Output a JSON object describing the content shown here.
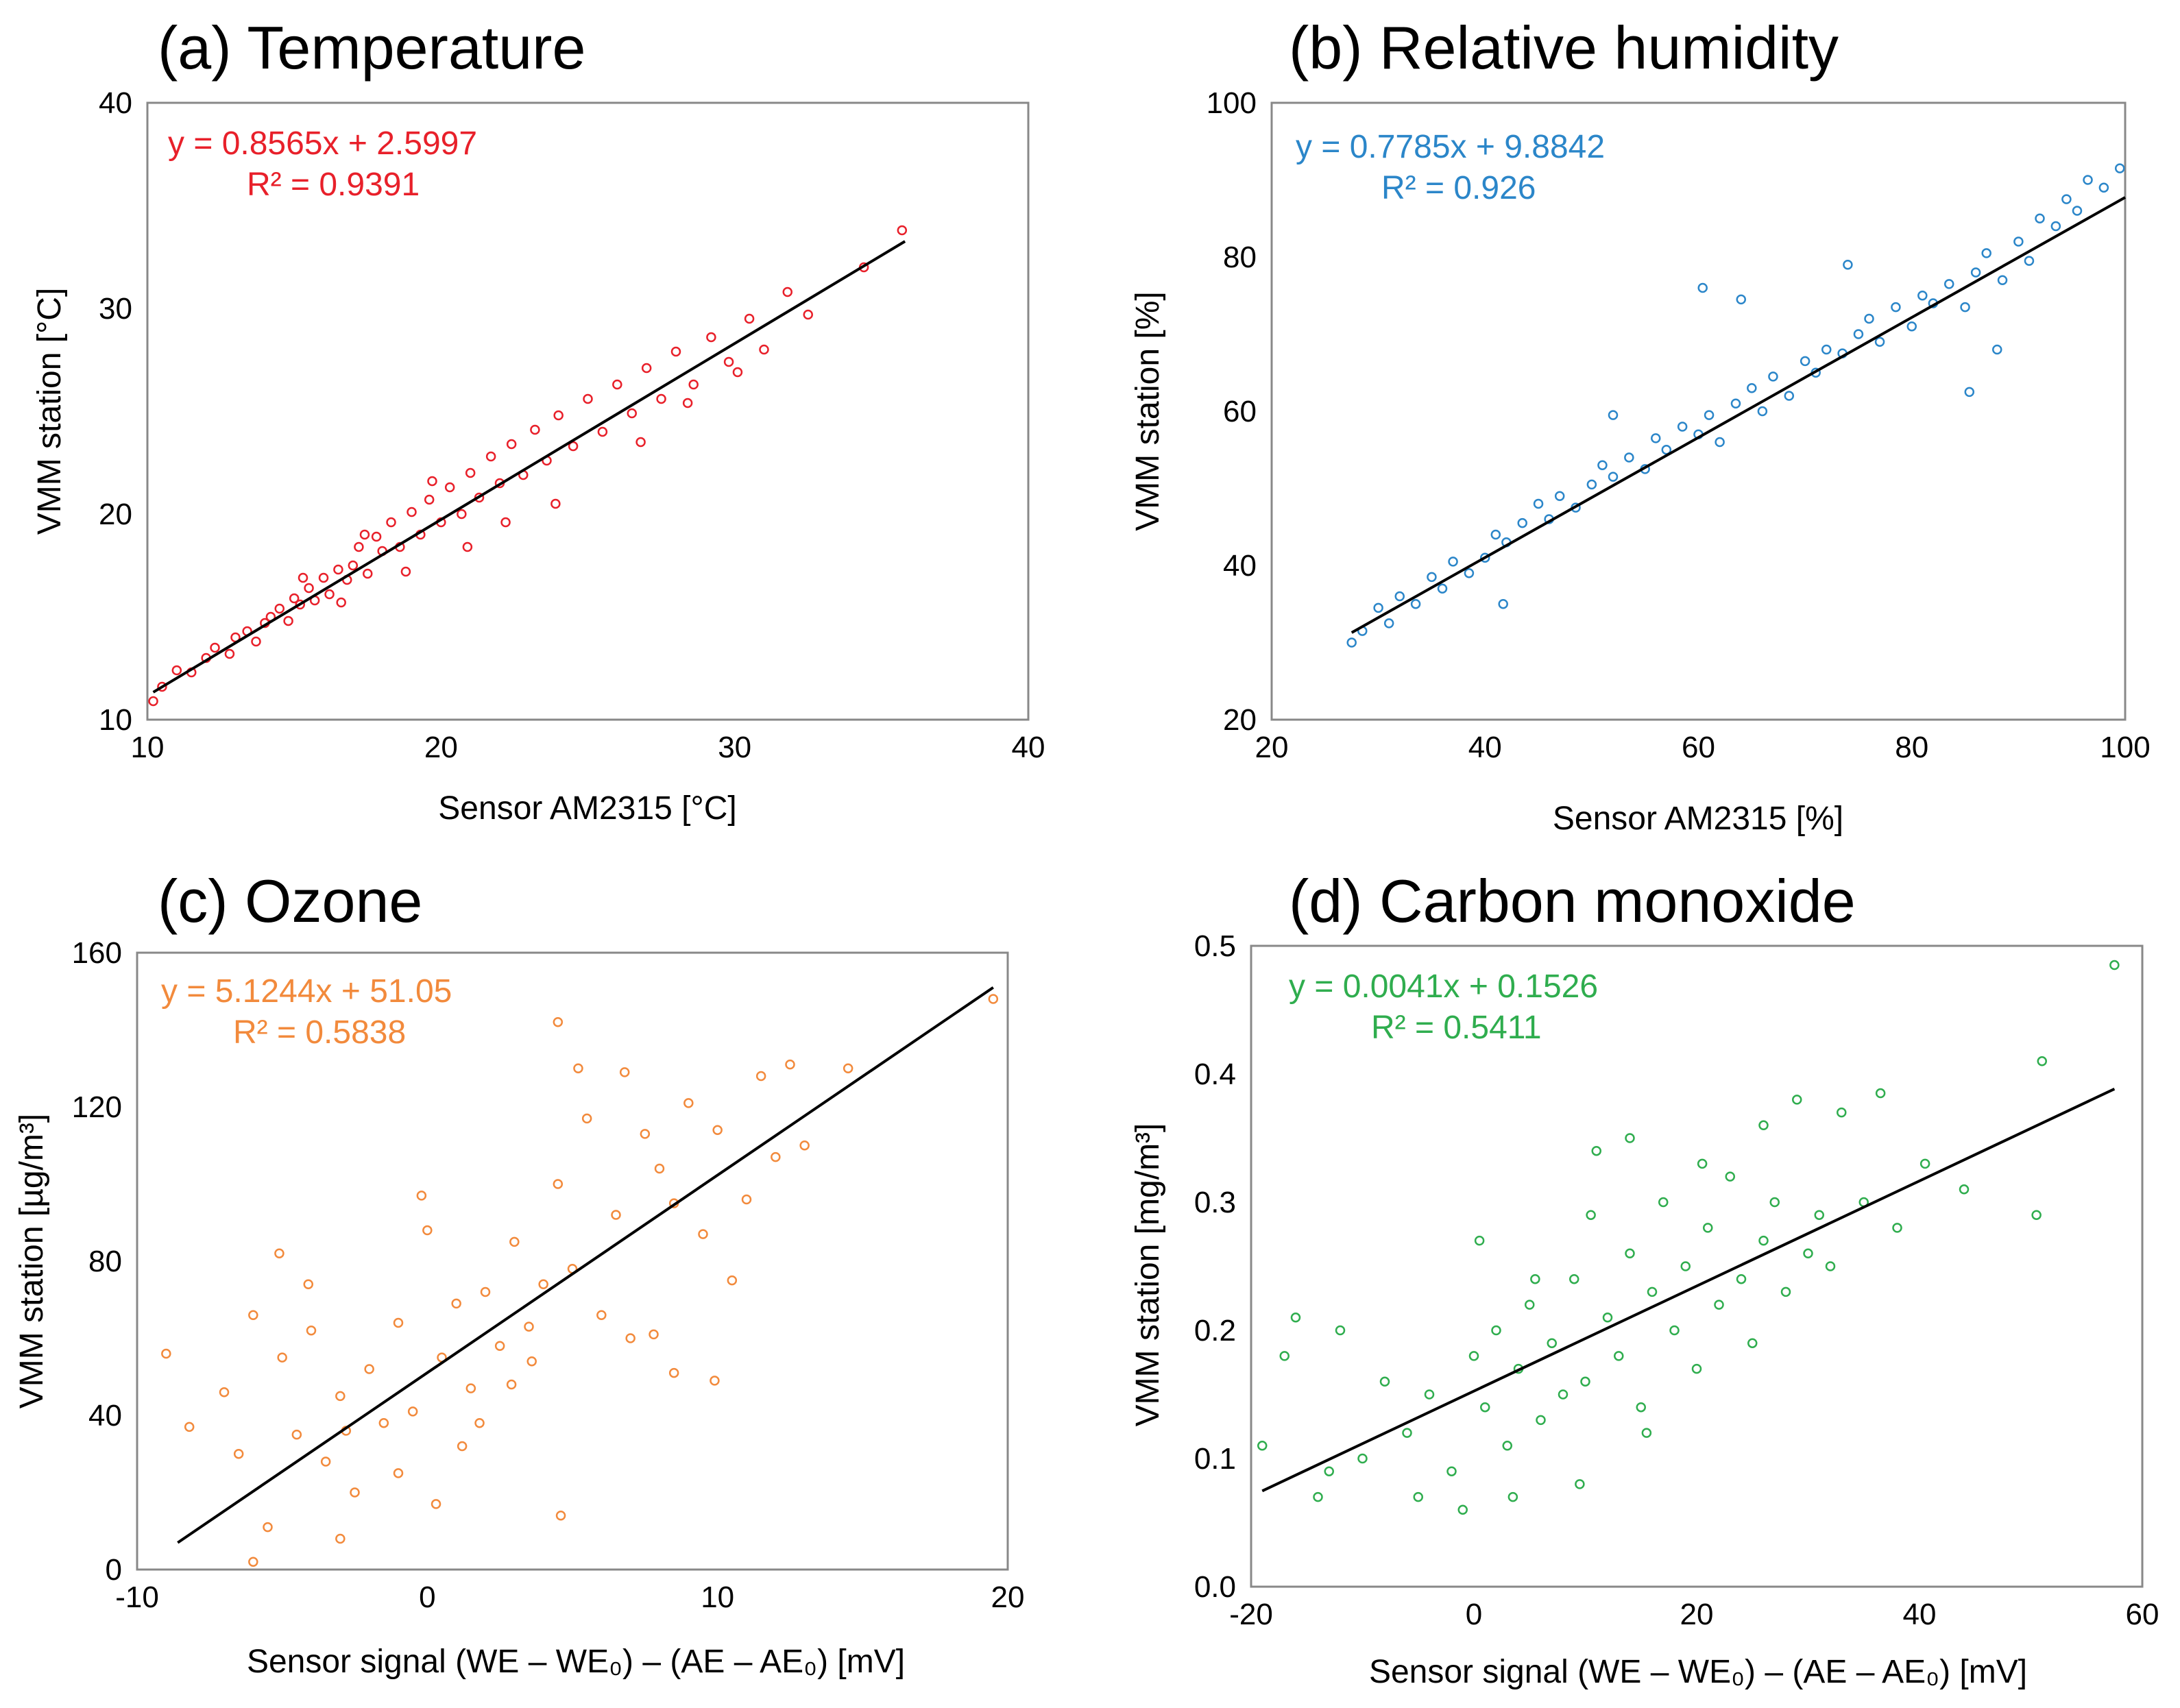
{
  "chart_data": [
    {
      "type": "scatter",
      "title": "(a) Temperature",
      "xlabel": "Sensor AM2315 [°C]",
      "ylabel": "VMM station [°C]",
      "xlim": [
        10,
        40
      ],
      "ylim": [
        10,
        40
      ],
      "xticks": [
        "10",
        "20",
        "30",
        "40"
      ],
      "yticks": [
        "10",
        "20",
        "30",
        "40"
      ],
      "color": "#e8202a",
      "equation": "y = 0.8565x + 2.5997",
      "r2": "R² = 0.9391",
      "fit": {
        "slope": 0.8565,
        "intercept": 2.5997,
        "x_range": [
          10.2,
          35.8
        ]
      },
      "series": [
        {
          "values_x": [
            10.2,
            10.5,
            11.0,
            11.5,
            12.0,
            12.3,
            12.8,
            13.0,
            13.4,
            13.7,
            14.0,
            14.2,
            14.5,
            14.8,
            15.0,
            15.2,
            15.5,
            15.7,
            16.0,
            16.2,
            16.5,
            16.8,
            17.0,
            17.2,
            17.5,
            17.8,
            18.0,
            18.3,
            18.6,
            19.0,
            19.3,
            19.6,
            20.0,
            20.3,
            20.7,
            21.0,
            21.3,
            21.7,
            22.0,
            22.4,
            22.8,
            23.2,
            23.6,
            24.0,
            24.5,
            25.0,
            25.5,
            26.0,
            26.5,
            27.0,
            27.5,
            28.0,
            28.6,
            29.2,
            29.8,
            30.5,
            31.0,
            31.8,
            32.5,
            34.4,
            35.7,
            15.3,
            16.6,
            17.4,
            18.8,
            19.7,
            20.9,
            22.2,
            23.9,
            26.8,
            28.4,
            30.1
          ],
          "values_y": [
            10.9,
            11.6,
            12.4,
            12.3,
            13.0,
            13.5,
            13.2,
            14.0,
            14.3,
            13.8,
            14.7,
            15.0,
            15.4,
            14.8,
            15.9,
            15.6,
            16.4,
            15.8,
            16.9,
            16.1,
            17.3,
            16.8,
            17.5,
            18.4,
            17.1,
            18.9,
            18.2,
            19.6,
            18.4,
            20.1,
            19.0,
            20.7,
            19.6,
            21.3,
            20.0,
            22.0,
            20.8,
            22.8,
            21.5,
            23.4,
            21.9,
            24.1,
            22.6,
            24.8,
            23.3,
            25.6,
            24.0,
            26.3,
            24.9,
            27.1,
            25.6,
            27.9,
            26.3,
            28.6,
            27.4,
            29.5,
            28.0,
            30.8,
            29.7,
            32.0,
            33.8,
            16.9,
            15.7,
            19.0,
            17.2,
            21.6,
            18.4,
            19.6,
            20.5,
            23.5,
            25.4,
            26.9
          ]
        }
      ]
    },
    {
      "type": "scatter",
      "title": "(b) Relative humidity",
      "xlabel": "Sensor AM2315 [%]",
      "ylabel": "VMM station [%]",
      "xlim": [
        20,
        100
      ],
      "ylim": [
        20,
        100
      ],
      "xticks": [
        "20",
        "40",
        "60",
        "80",
        "100"
      ],
      "yticks": [
        "20",
        "40",
        "60",
        "80",
        "100"
      ],
      "color": "#2b86c9",
      "equation": "y = 0.7785x + 9.8842",
      "r2": "R² = 0.926",
      "fit": {
        "slope": 0.7785,
        "intercept": 9.8842,
        "x_range": [
          27.5,
          100
        ]
      },
      "series": [
        {
          "values_x": [
            27.5,
            28.5,
            30.0,
            31.0,
            32.0,
            33.5,
            35.0,
            36.0,
            37.0,
            38.5,
            40.0,
            41.0,
            42.0,
            43.5,
            45.0,
            46.0,
            47.0,
            48.5,
            50.0,
            51.0,
            52.0,
            53.5,
            55.0,
            56.0,
            57.0,
            58.5,
            60.0,
            61.0,
            62.0,
            63.5,
            65.0,
            66.0,
            67.0,
            68.5,
            70.0,
            71.0,
            72.0,
            73.5,
            75.0,
            76.0,
            77.0,
            78.5,
            80.0,
            81.0,
            82.0,
            83.5,
            85.0,
            86.0,
            87.0,
            88.5,
            90.0,
            91.0,
            92.0,
            93.5,
            94.5,
            95.5,
            96.5,
            98.0,
            99.5,
            60.4,
            85.4,
            41.7,
            52.0,
            64.0,
            74.0,
            88.0
          ],
          "values_y": [
            30.0,
            31.5,
            34.5,
            32.5,
            36.0,
            35.0,
            38.5,
            37.0,
            40.5,
            39.0,
            41.0,
            44.0,
            43.0,
            45.5,
            48.0,
            46.0,
            49.0,
            47.5,
            50.5,
            53.0,
            51.5,
            54.0,
            52.5,
            56.5,
            55.0,
            58.0,
            57.0,
            59.5,
            56.0,
            61.0,
            63.0,
            60.0,
            64.5,
            62.0,
            66.5,
            65.0,
            68.0,
            67.5,
            70.0,
            72.0,
            69.0,
            73.5,
            71.0,
            75.0,
            74.0,
            76.5,
            73.5,
            78.0,
            80.5,
            77.0,
            82.0,
            79.5,
            85.0,
            84.0,
            87.5,
            86.0,
            90.0,
            89.0,
            91.5,
            76.0,
            62.5,
            35.0,
            59.5,
            74.5,
            79.0,
            68.0
          ]
        }
      ]
    },
    {
      "type": "scatter",
      "title": "(c) Ozone",
      "xlabel": "Sensor signal (WE – WE₀) – (AE – AE₀) [mV]",
      "ylabel": "VMM station [µg/m³]",
      "xlim": [
        -10,
        20
      ],
      "ylim": [
        0,
        160
      ],
      "xticks": [
        "-10",
        "0",
        "10",
        "20"
      ],
      "yticks": [
        "0",
        "40",
        "80",
        "120",
        "160"
      ],
      "color": "#f28a3c",
      "equation": "y = 5.1244x + 51.05",
      "r2": "R² = 0.5838",
      "fit": {
        "slope": 5.1244,
        "intercept": 51.05,
        "x_range": [
          -8.6,
          19.5
        ]
      },
      "series": [
        {
          "values_x": [
            -9.0,
            -8.2,
            -7.0,
            -6.5,
            -6.0,
            -5.5,
            -5.0,
            -4.5,
            -4.0,
            -3.5,
            -3.0,
            -2.5,
            -2.0,
            -1.5,
            -1.0,
            -0.5,
            0.0,
            0.5,
            1.0,
            1.5,
            2.0,
            2.5,
            3.0,
            3.5,
            4.0,
            4.5,
            5.0,
            5.5,
            6.0,
            6.5,
            7.0,
            7.5,
            8.0,
            8.5,
            9.0,
            9.5,
            10.0,
            10.5,
            11.0,
            11.5,
            12.0,
            12.5,
            13.0,
            14.5,
            19.5,
            -6.0,
            -3.0,
            -1.0,
            0.3,
            1.8,
            2.9,
            4.5,
            4.6,
            9.9,
            8.5,
            -5.1,
            -4.1,
            -2.8,
            -0.2,
            1.2,
            3.6,
            6.8,
            5.2,
            7.8
          ],
          "values_y": [
            56.0,
            37.0,
            46.0,
            30.0,
            66.0,
            11.0,
            55.0,
            35.0,
            62.0,
            28.0,
            45.0,
            20.0,
            52.0,
            38.0,
            64.0,
            41.0,
            88.0,
            55.0,
            69.0,
            47.0,
            72.0,
            58.0,
            85.0,
            63.0,
            74.0,
            100.0,
            78.0,
            117.0,
            66.0,
            92.0,
            60.0,
            113.0,
            104.0,
            95.0,
            121.0,
            87.0,
            114.0,
            75.0,
            96.0,
            128.0,
            107.0,
            131.0,
            110.0,
            130.0,
            148.0,
            2.0,
            8.0,
            25.0,
            17.0,
            38.0,
            48.0,
            142.0,
            14.0,
            49.0,
            51.0,
            82.0,
            74.0,
            36.0,
            97.0,
            32.0,
            54.0,
            129.0,
            130.0,
            61.0
          ]
        }
      ]
    },
    {
      "type": "scatter",
      "title": "(d) Carbon monoxide",
      "xlabel": "Sensor signal (WE – WE₀) – (AE – AE₀) [mV]",
      "ylabel": "VMM station [mg/m³]",
      "xlim": [
        -20,
        60
      ],
      "ylim": [
        0,
        0.5
      ],
      "xticks": [
        "-20",
        "0",
        "20",
        "40",
        "60"
      ],
      "yticks": [
        "0.0",
        "0.1",
        "0.2",
        "0.3",
        "0.4",
        "0.5"
      ],
      "color": "#2fad4e",
      "equation": "y = 0.0041x + 0.1526",
      "r2": "R² = 0.5411",
      "fit": {
        "slope": 0.0041,
        "intercept": 0.1526,
        "x_range": [
          -19,
          57.5
        ]
      },
      "series": [
        {
          "values_x": [
            -19.0,
            -16.0,
            -14.0,
            -12.0,
            -10.0,
            -8.0,
            -6.0,
            -4.0,
            -2.0,
            0.0,
            1.0,
            2.0,
            3.0,
            4.0,
            5.0,
            6.0,
            7.0,
            8.0,
            9.0,
            10.0,
            11.0,
            12.0,
            13.0,
            14.0,
            15.0,
            16.0,
            17.0,
            18.0,
            19.0,
            20.0,
            21.0,
            22.0,
            23.0,
            24.0,
            25.0,
            26.0,
            27.0,
            28.0,
            29.0,
            30.0,
            31.0,
            32.0,
            33.0,
            35.0,
            36.5,
            38.0,
            40.5,
            44.0,
            50.5,
            51.0,
            57.5,
            -17.0,
            -13.0,
            -5.0,
            0.5,
            5.5,
            10.5,
            15.5,
            -1.0,
            3.5,
            9.5,
            14.0,
            20.5,
            26.0
          ],
          "values_y": [
            0.11,
            0.21,
            0.07,
            0.2,
            0.1,
            0.16,
            0.12,
            0.15,
            0.09,
            0.18,
            0.14,
            0.2,
            0.11,
            0.17,
            0.22,
            0.13,
            0.19,
            0.15,
            0.24,
            0.16,
            0.34,
            0.21,
            0.18,
            0.26,
            0.14,
            0.23,
            0.3,
            0.2,
            0.25,
            0.17,
            0.28,
            0.22,
            0.32,
            0.24,
            0.19,
            0.27,
            0.3,
            0.23,
            0.38,
            0.26,
            0.29,
            0.25,
            0.37,
            0.3,
            0.385,
            0.28,
            0.33,
            0.31,
            0.29,
            0.41,
            0.485,
            0.18,
            0.09,
            0.07,
            0.27,
            0.24,
            0.29,
            0.12,
            0.06,
            0.07,
            0.08,
            0.35,
            0.33,
            0.36
          ]
        }
      ]
    }
  ]
}
